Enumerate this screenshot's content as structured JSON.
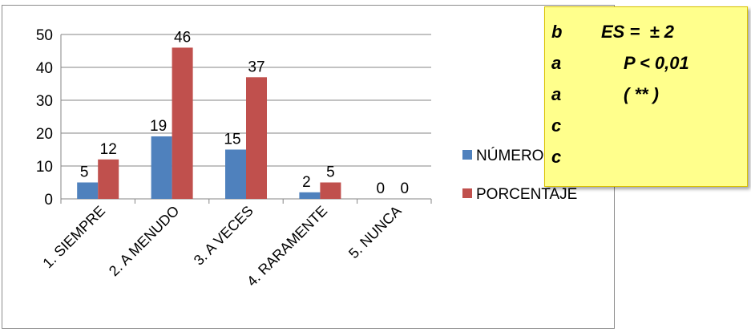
{
  "chart_data": {
    "type": "bar",
    "categories": [
      "1. SIEMPRE",
      "2. A MENUDO",
      "3. A VECES",
      "4. RARAMENTE",
      "5. NUNCA"
    ],
    "series": [
      {
        "name": "NÚMERO",
        "values": [
          5,
          19,
          15,
          2,
          0
        ],
        "color": "#4f81bd"
      },
      {
        "name": "PORCENTAJE",
        "values": [
          12,
          46,
          37,
          5,
          0
        ],
        "color": "#c0504d"
      }
    ],
    "ylim": [
      0,
      50
    ],
    "yticks": [
      0,
      10,
      20,
      30,
      40,
      50
    ],
    "grid": true,
    "legend": "right",
    "title": "",
    "xlabel": "",
    "ylabel": ""
  },
  "stats_box": {
    "rows": [
      {
        "letter": "b",
        "text": "ES =  ± 2"
      },
      {
        "letter": "a",
        "text": "P < 0,01"
      },
      {
        "letter": "a",
        "text": "( ** )"
      },
      {
        "letter": "c",
        "text": ""
      },
      {
        "letter": "c",
        "text": ""
      }
    ]
  }
}
